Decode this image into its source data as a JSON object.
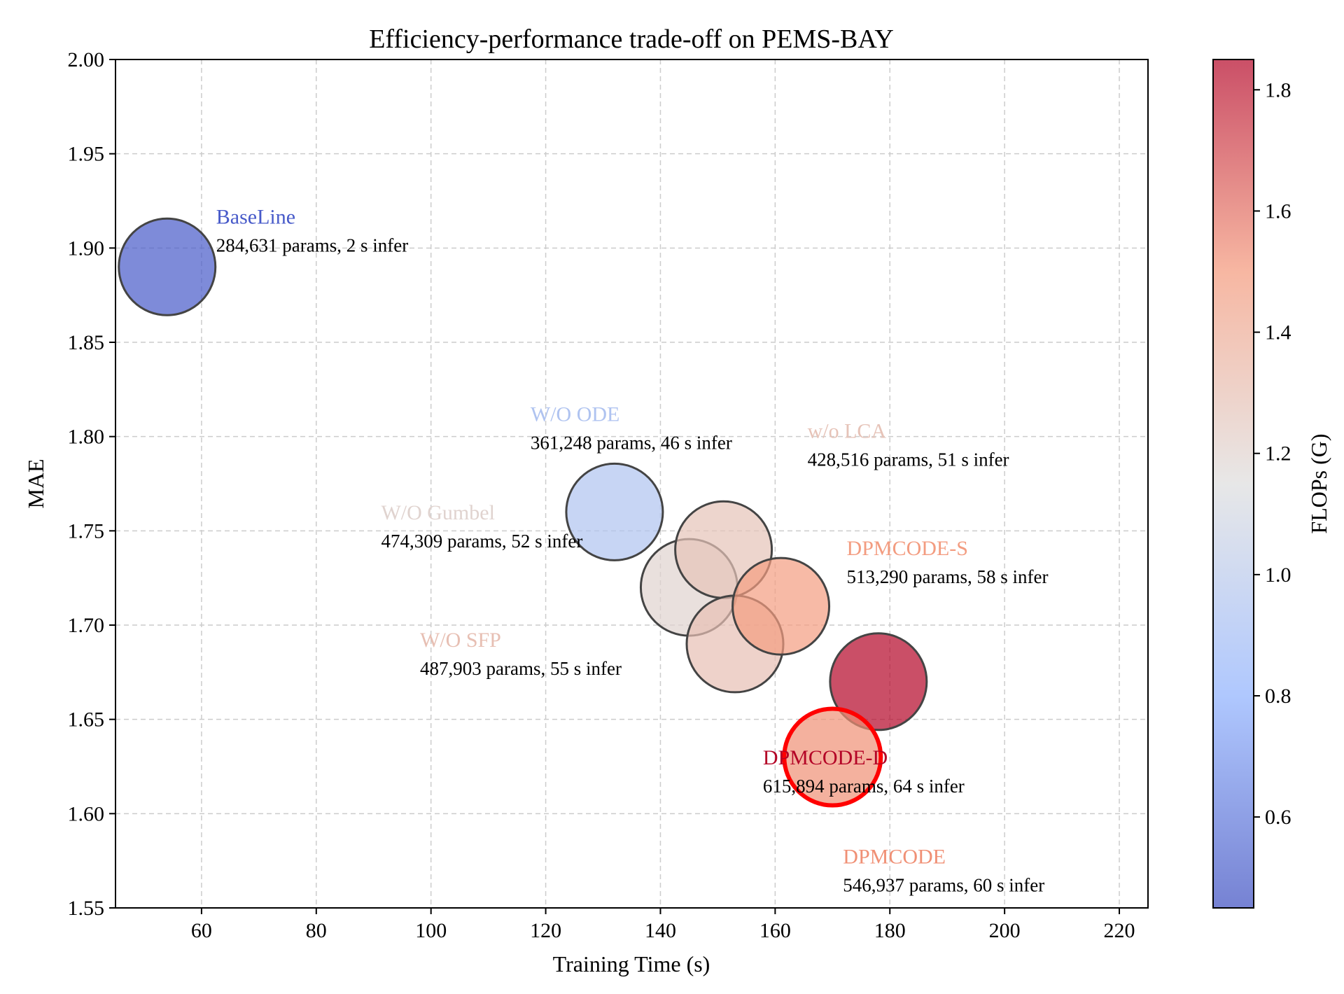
{
  "chart_data": {
    "type": "scatter",
    "title": "Efficiency-performance trade-off on PEMS-BAY",
    "xlabel": "Training Time (s)",
    "ylabel": "MAE",
    "xlim": [
      45,
      225
    ],
    "ylim": [
      1.55,
      2.0
    ],
    "xticks": [
      60,
      80,
      100,
      120,
      140,
      160,
      180,
      200,
      220
    ],
    "xtick_labels": [
      "60",
      "80",
      "100",
      "120",
      "140",
      "160",
      "180",
      "200",
      "220"
    ],
    "yticks": [
      1.55,
      1.6,
      1.65,
      1.7,
      1.75,
      1.8,
      1.85,
      1.9,
      1.95,
      2.0
    ],
    "ytick_labels": [
      "1.55",
      "1.60",
      "1.65",
      "1.70",
      "1.75",
      "1.80",
      "1.85",
      "1.90",
      "1.95",
      "2.00"
    ],
    "grid": true,
    "colorbar": {
      "label": "FLOPs (G)",
      "colormap": "coolwarm",
      "range": [
        0.45,
        1.85
      ],
      "ticks": [
        0.6,
        0.8,
        1.0,
        1.2,
        1.4,
        1.6,
        1.8
      ],
      "tick_labels": [
        "0.6",
        "0.8",
        "1.0",
        "1.2",
        "1.4",
        "1.6",
        "1.8"
      ]
    },
    "points": [
      {
        "name": "BaseLine",
        "x": 54,
        "y": 1.89,
        "flops": 0.5,
        "params": 284631,
        "infer_s": 2,
        "label": "BaseLine",
        "detail": "284,631 params, 2 s infer",
        "highlight": false
      },
      {
        "name": "W/O ODE",
        "x": 132,
        "y": 1.76,
        "flops": 0.95,
        "params": 361248,
        "infer_s": 46,
        "label": "W/O ODE",
        "detail": "361,248 params, 46 s infer",
        "highlight": false
      },
      {
        "name": "W/O Gumbel",
        "x": 145,
        "y": 1.72,
        "flops": 1.2,
        "params": 474309,
        "infer_s": 52,
        "label": "W/O Gumbel",
        "detail": "474,309 params, 52 s infer",
        "highlight": false
      },
      {
        "name": "w/o LCA",
        "x": 151,
        "y": 1.74,
        "flops": 1.28,
        "params": 428516,
        "infer_s": 51,
        "label": "w/o LCA",
        "detail": "428,516 params, 51 s infer",
        "highlight": false
      },
      {
        "name": "W/O SFP",
        "x": 153,
        "y": 1.69,
        "flops": 1.3,
        "params": 487903,
        "infer_s": 55,
        "label": "W/O SFP",
        "detail": "487,903 params, 55 s infer",
        "highlight": false
      },
      {
        "name": "DPMCODE-S",
        "x": 161,
        "y": 1.71,
        "flops": 1.48,
        "params": 513290,
        "infer_s": 58,
        "label": "DPMCODE-S",
        "detail": "513,290 params, 58 s infer",
        "highlight": false
      },
      {
        "name": "DPMCODE-D",
        "x": 178,
        "y": 1.67,
        "flops": 1.85,
        "params": 615894,
        "infer_s": 64,
        "label": "DPMCODE-D",
        "detail": "615,894 params, 64 s infer",
        "highlight": false
      },
      {
        "name": "DPMCODE",
        "x": 170,
        "y": 1.63,
        "flops": 1.52,
        "params": 546937,
        "infer_s": 60,
        "label": "DPMCODE",
        "detail": "546,937 params, 60 s infer",
        "highlight": true
      }
    ]
  }
}
